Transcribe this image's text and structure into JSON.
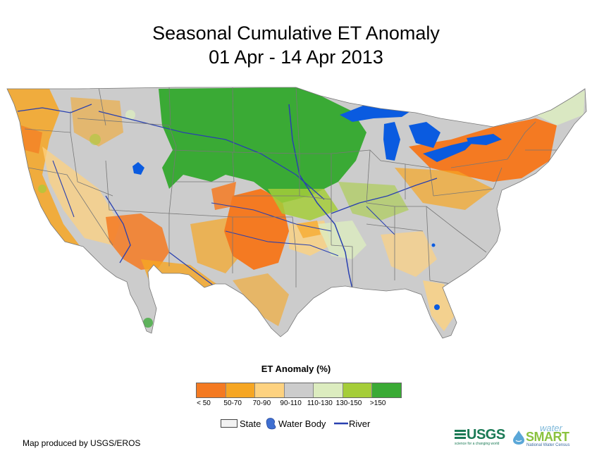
{
  "title": {
    "line1": "Seasonal Cumulative ET Anomaly",
    "line2": "01 Apr - 14 Apr 2013"
  },
  "legend": {
    "title": "ET Anomaly (%)",
    "classes": [
      {
        "label": "< 50",
        "color": "#f47a22"
      },
      {
        "label": "50-70",
        "color": "#f6a623"
      },
      {
        "label": "70-90",
        "color": "#fdd280"
      },
      {
        "label": "90-110",
        "color": "#cccccc"
      },
      {
        "label": "110-130",
        "color": "#dcecbf"
      },
      {
        "label": "130-150",
        "color": "#a5cd39"
      },
      {
        "label": ">150",
        "color": "#3aaa35"
      }
    ],
    "keys": {
      "state": "State",
      "water_body": "Water Body",
      "river": "River"
    }
  },
  "colors": {
    "water": "#0a5be0",
    "river": "#2940b0",
    "state_border": "#777777"
  },
  "credit": "Map produced by USGS/EROS",
  "logos": {
    "usgs": "USGS",
    "usgs_tagline": "science for a changing world",
    "watersmart_top": "water",
    "watersmart_main": "SMART",
    "watersmart_sub": "National Water Census"
  }
}
